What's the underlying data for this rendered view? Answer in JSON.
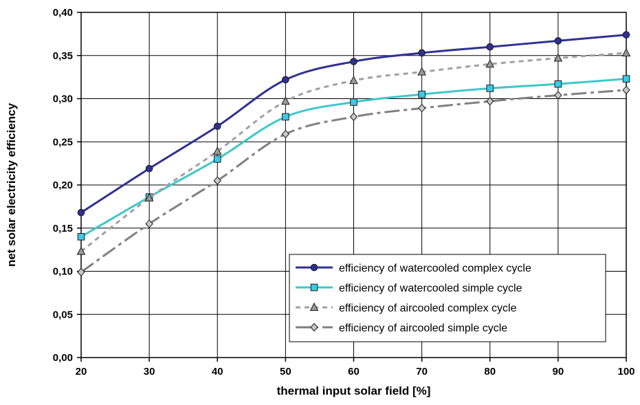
{
  "chart_data": {
    "type": "line",
    "title": "",
    "xlabel": "thermal input solar field [%]",
    "ylabel": "net solar electricity efficiency",
    "x": [
      20,
      30,
      40,
      50,
      60,
      70,
      80,
      90,
      100
    ],
    "xlim": [
      20,
      100
    ],
    "ylim": [
      0,
      0.4
    ],
    "x_ticks": [
      "20",
      "30",
      "40",
      "50",
      "60",
      "70",
      "80",
      "90",
      "100"
    ],
    "y_ticks": [
      "0,00",
      "0,05",
      "0,10",
      "0,15",
      "0,20",
      "0,25",
      "0,30",
      "0,35",
      "0,40"
    ],
    "grid": true,
    "legend_position": "bottom-right",
    "series": [
      {
        "name": "efficiency of watercooled complex cycle",
        "values": [
          0.168,
          0.219,
          0.268,
          0.322,
          0.343,
          0.353,
          0.36,
          0.367,
          0.374
        ],
        "color": "#2e3192",
        "dash": "solid",
        "marker": "circle"
      },
      {
        "name": "efficiency of watercooled simple cycle",
        "values": [
          0.14,
          0.186,
          0.23,
          0.279,
          0.296,
          0.305,
          0.312,
          0.317,
          0.323
        ],
        "color": "#3cc8c8",
        "dash": "solid",
        "marker": "square"
      },
      {
        "name": "efficiency of aircooled complex cycle",
        "values": [
          0.123,
          0.185,
          0.239,
          0.297,
          0.321,
          0.331,
          0.34,
          0.347,
          0.353
        ],
        "color": "#a0a0a0",
        "dash": "short-dash",
        "marker": "triangle"
      },
      {
        "name": "efficiency of aircooled simple cycle",
        "values": [
          0.099,
          0.155,
          0.205,
          0.259,
          0.279,
          0.289,
          0.297,
          0.304,
          0.31
        ],
        "color": "#808080",
        "dash": "long-dash",
        "marker": "diamond"
      }
    ]
  }
}
